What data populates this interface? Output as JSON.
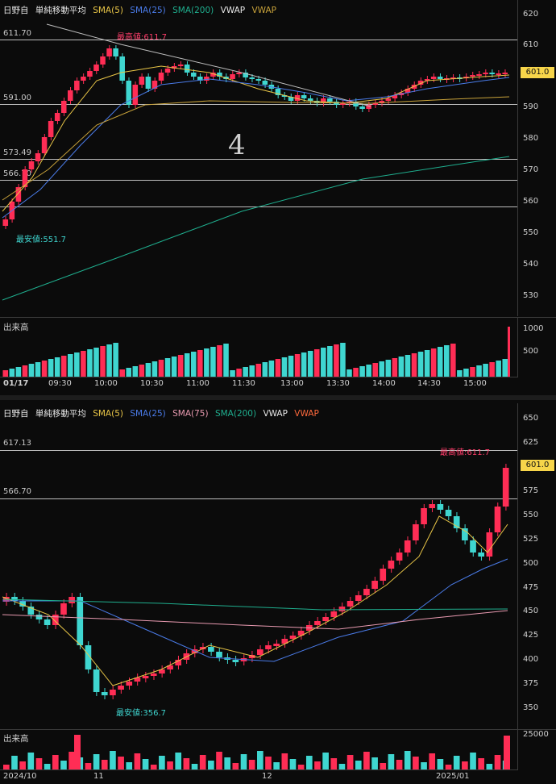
{
  "top_chart": {
    "legend": {
      "symbol": "日野自",
      "indicator": "単純移動平均",
      "sma5": "SMA(5)",
      "sma25": "SMA(25)",
      "sma200": "SMA(200)",
      "vwap": "VWAP",
      "vwap2": "VWAP"
    },
    "level_lines": [
      "611.70",
      "591.00",
      "573.49",
      "566.70"
    ],
    "price_ticks": [
      "620",
      "610",
      "601.0",
      "590",
      "580",
      "570",
      "560",
      "550",
      "540",
      "530"
    ],
    "current_price": "601.0",
    "high_label": "最高値:611.7",
    "low_label": "最安値:551.7",
    "volume_title": "出来高",
    "volume_ticks": [
      "1000",
      "500"
    ],
    "time_ticks": [
      "01/17",
      "09:30",
      "10:00",
      "10:30",
      "11:00",
      "11:30",
      "13:00",
      "13:30",
      "14:00",
      "14:30",
      "15:00"
    ],
    "handwriting": "4"
  },
  "bottom_chart": {
    "legend": {
      "symbol": "日野自",
      "indicator": "単純移動平均",
      "sma5": "SMA(5)",
      "sma25": "SMA(25)",
      "sma75": "SMA(75)",
      "sma200": "SMA(200)",
      "vwap": "VWAP",
      "vwap2": "VWAP"
    },
    "level_lines": [
      "617.13",
      "566.70"
    ],
    "price_ticks": [
      "650",
      "625",
      "601.0",
      "575",
      "550",
      "525",
      "500",
      "475",
      "450",
      "425",
      "400",
      "375",
      "350"
    ],
    "current_price": "601.0",
    "high_label": "最高値:611.7",
    "low_label": "最安値:356.7",
    "volume_title": "出来高",
    "volume_ticks": [
      "25000"
    ],
    "time_ticks": [
      "2024/10",
      "11",
      "12",
      "2025/01"
    ]
  },
  "colors": {
    "up": "#ff2d55",
    "down": "#3fd6d0",
    "sma5": "#e8c547",
    "sma25": "#4a7be8",
    "sma75": "#e89ab0",
    "sma200": "#1fae8e",
    "vwap": "#e8e8e8",
    "vwap_alt": "#c8a23a",
    "high_label": "#ff3d6a",
    "low_label": "#3fd6d0"
  }
}
